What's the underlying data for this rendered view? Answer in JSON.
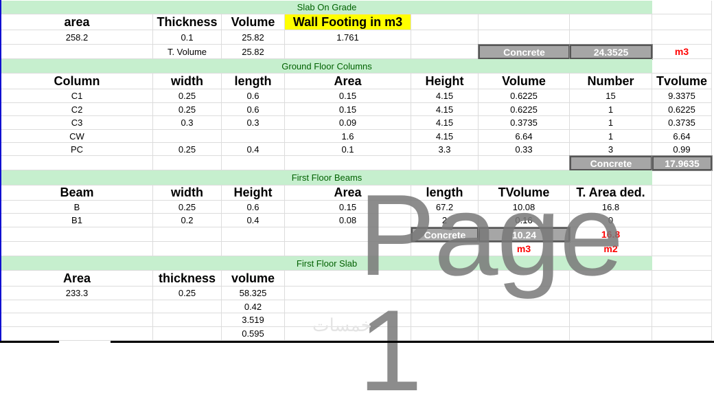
{
  "sections": [
    "Slab On Grade",
    "Ground Floor Columns",
    "First Floor Beams",
    "First Floor Slab"
  ],
  "rows": [
    {
      "type": "section",
      "section": 0
    },
    {
      "type": "header",
      "cells": [
        "area",
        "Thickness",
        "Volume",
        "Wall Footing in m3",
        "",
        "",
        "",
        ""
      ]
    },
    {
      "type": "data",
      "cells": [
        "258.2",
        "0.1",
        "25.82",
        "1.761",
        "",
        "",
        "",
        ""
      ]
    },
    {
      "type": "data",
      "cells": [
        "",
        "T. Volume",
        "25.82",
        "",
        "",
        "Concrete",
        "24.3525",
        "m3"
      ]
    },
    {
      "type": "section",
      "section": 1
    },
    {
      "type": "header",
      "cells": [
        "Column",
        "width",
        "length",
        "Area",
        "Height",
        "Volume",
        "Number",
        "Tvolume"
      ]
    },
    {
      "type": "data",
      "cells": [
        "C1",
        "0.25",
        "0.6",
        "0.15",
        "4.15",
        "0.6225",
        "15",
        "9.3375"
      ]
    },
    {
      "type": "data",
      "cells": [
        "C2",
        "0.25",
        "0.6",
        "0.15",
        "4.15",
        "0.6225",
        "1",
        "0.6225"
      ]
    },
    {
      "type": "data",
      "cells": [
        "C3",
        "0.3",
        "0.3",
        "0.09",
        "4.15",
        "0.3735",
        "1",
        "0.3735"
      ]
    },
    {
      "type": "data",
      "cells": [
        "CW",
        "",
        "",
        "1.6",
        "4.15",
        "6.64",
        "1",
        "6.64"
      ]
    },
    {
      "type": "data",
      "cells": [
        "PC",
        "0.25",
        "0.4",
        "0.1",
        "3.3",
        "0.33",
        "3",
        "0.99"
      ]
    },
    {
      "type": "data",
      "cells": [
        "",
        "",
        "",
        "",
        "",
        "",
        "Concrete",
        "17.9635"
      ]
    },
    {
      "type": "section",
      "section": 2
    },
    {
      "type": "header",
      "cells": [
        "Beam",
        "width",
        "Height",
        "Area",
        "length",
        "TVolume",
        "T. Area ded.",
        ""
      ]
    },
    {
      "type": "data",
      "cells": [
        "B",
        "0.25",
        "0.6",
        "0.15",
        "67.2",
        "10.08",
        "16.8",
        ""
      ]
    },
    {
      "type": "data",
      "cells": [
        "B1",
        "0.2",
        "0.4",
        "0.08",
        "2",
        "0.16",
        "0",
        ""
      ]
    },
    {
      "type": "data",
      "cells": [
        "",
        "",
        "",
        "",
        "Concrete",
        "10.24",
        "16.8",
        ""
      ]
    },
    {
      "type": "data",
      "cells": [
        "",
        "",
        "",
        "",
        "",
        "m3",
        "m2",
        ""
      ]
    },
    {
      "type": "section",
      "section": 3
    },
    {
      "type": "header",
      "cells": [
        "Area",
        "thickness",
        "volume",
        "",
        "",
        "",
        "",
        ""
      ]
    },
    {
      "type": "data",
      "cells": [
        "233.3",
        "0.25",
        "58.325",
        "",
        "",
        "",
        "",
        ""
      ]
    },
    {
      "type": "data",
      "cells": [
        "",
        "",
        "0.42",
        "",
        "",
        "",
        "",
        ""
      ]
    },
    {
      "type": "data",
      "cells": [
        "",
        "",
        "3.519",
        "",
        "",
        "",
        "",
        ""
      ]
    },
    {
      "type": "data",
      "cells": [
        "",
        "",
        "0.595",
        "",
        "",
        "",
        "",
        ""
      ]
    }
  ],
  "watermark": "Page 1",
  "watermark_arabic": "خمسات",
  "colors": {
    "section_bg": "#c6efce",
    "section_text": "#006100",
    "highlight": "#ffff00",
    "total_box": "#a6a6a6",
    "unit_red": "#ff0000"
  }
}
